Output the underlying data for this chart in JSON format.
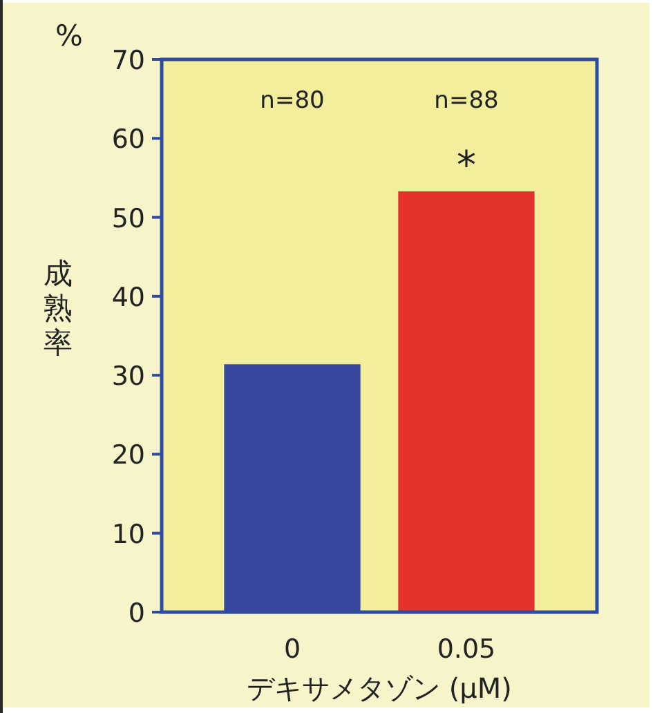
{
  "chart_data": {
    "type": "bar",
    "ylabel": "成熟率",
    "xlabel": "デキサメタゾン (μM)",
    "categories": [
      "0",
      "0.05"
    ],
    "colors": [
      "#3a479f",
      "#e4312b"
    ],
    "values": [
      31.3,
      53.2
    ],
    "ylim": [
      0,
      70
    ],
    "yticks": [
      0,
      10,
      20,
      30,
      40,
      50,
      60,
      70
    ],
    "annotations": [
      "%",
      "n=80",
      "n=88",
      "*"
    ]
  }
}
